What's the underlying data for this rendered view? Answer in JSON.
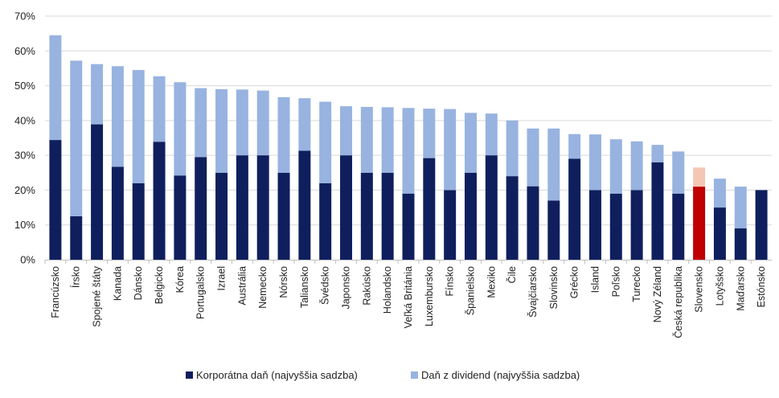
{
  "chart_data": {
    "type": "bar",
    "stacked": true,
    "title": "",
    "xlabel": "",
    "ylabel": "",
    "ylim": [
      0,
      70
    ],
    "y_ticks": [
      "0%",
      "10%",
      "20%",
      "30%",
      "40%",
      "50%",
      "60%",
      "70%"
    ],
    "grid": "horizontal",
    "legend_position": "bottom",
    "categories": [
      "Francúzsko",
      "Írsko",
      "Spojené štáty",
      "Kanada",
      "Dánsko",
      "Belgicko",
      "Kórea",
      "Portugalsko",
      "Izrael",
      "Austrália",
      "Nemecko",
      "Nórsko",
      "Taliansko",
      "Švédsko",
      "Japonsko",
      "Rakúsko",
      "Holandsko",
      "Veľká Británia",
      "Luxembursko",
      "Fínsko",
      "Španielsko",
      "Mexiko",
      "Čile",
      "Švajčiarsko",
      "Slovinsko",
      "Grécko",
      "Island",
      "Poľsko",
      "Turecko",
      "Nový Zéland",
      "Česká republika",
      "Slovensko",
      "Lotyšsko",
      "Maďarsko",
      "Estónsko"
    ],
    "series": [
      {
        "name": "Korporátna daň (najvyššia sadzba)",
        "color": "#0f1f5e",
        "values": [
          34.4,
          12.5,
          38.9,
          26.7,
          22.0,
          33.9,
          24.2,
          29.5,
          25.0,
          30.0,
          30.0,
          25.0,
          31.3,
          22.0,
          30.0,
          25.0,
          25.0,
          19.0,
          29.2,
          20.0,
          25.0,
          30.0,
          24.0,
          21.1,
          17.0,
          29.0,
          20.0,
          19.0,
          20.0,
          28.0,
          19.0,
          21.0,
          15.0,
          9.0,
          20.0
        ]
      },
      {
        "name": "Daň z dividend (najvyššia sadzba)",
        "color": "#98b3e0",
        "values": [
          30.1,
          44.7,
          17.3,
          28.9,
          32.5,
          18.8,
          26.8,
          19.8,
          24.0,
          18.9,
          18.6,
          21.7,
          15.1,
          23.4,
          14.1,
          18.9,
          18.8,
          24.6,
          14.2,
          23.3,
          17.2,
          12.0,
          16.0,
          16.6,
          20.7,
          7.1,
          16.0,
          15.6,
          14.0,
          5.0,
          12.1,
          5.5,
          8.3,
          12.0,
          0
        ]
      }
    ],
    "highlight": {
      "category": "Slovensko",
      "colors": [
        "#c00000",
        "#f4c7b4"
      ]
    }
  }
}
